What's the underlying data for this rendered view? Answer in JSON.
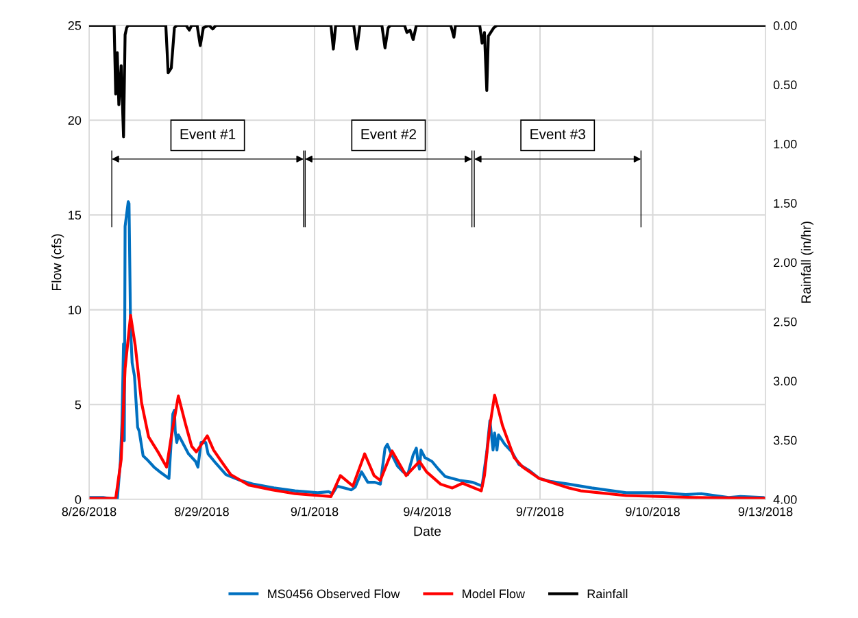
{
  "chart_data": {
    "type": "line",
    "xlabel": "Date",
    "ylabel": "Flow (cfs)",
    "y2label": "Rainfall (in/hr)",
    "xlim": [
      "2018-08-26",
      "2018-09-13"
    ],
    "xticks": [
      {
        "value": "2018-08-26",
        "label": "8/26/2018"
      },
      {
        "value": "2018-08-29",
        "label": "8/29/2018"
      },
      {
        "value": "2018-09-01",
        "label": "9/1/2018"
      },
      {
        "value": "2018-09-04",
        "label": "9/4/2018"
      },
      {
        "value": "2018-09-07",
        "label": "9/7/2018"
      },
      {
        "value": "2018-09-10",
        "label": "9/10/2018"
      },
      {
        "value": "2018-09-13",
        "label": "9/13/2018"
      }
    ],
    "ylim": [
      0,
      25
    ],
    "yticks": [
      0,
      5,
      10,
      15,
      20,
      25
    ],
    "y2lim": [
      4,
      0
    ],
    "y2ticks": [
      {
        "value": 0,
        "label": "0.00"
      },
      {
        "value": 0.5,
        "label": "0.50"
      },
      {
        "value": 1,
        "label": "1.00"
      },
      {
        "value": 1.5,
        "label": "1.50"
      },
      {
        "value": 2,
        "label": "2.00"
      },
      {
        "value": 2.5,
        "label": "2.50"
      },
      {
        "value": 3,
        "label": "3.00"
      },
      {
        "value": 3.5,
        "label": "3.50"
      },
      {
        "value": 4,
        "label": "4.00"
      }
    ],
    "grid": true,
    "legend": "bottom",
    "line_style": "solid",
    "marker": "none",
    "ref_lines": [
      {
        "axis": "x",
        "value": "2018-08-26T14:30",
        "color": "#000000"
      },
      {
        "axis": "x",
        "value": "2018-08-31T17:00",
        "color": "#000000"
      },
      {
        "axis": "x",
        "value": "2018-08-31T18:00",
        "color": "#000000"
      },
      {
        "axis": "x",
        "value": "2018-09-05T04:30",
        "color": "#000000"
      },
      {
        "axis": "x",
        "value": "2018-09-05T06:00",
        "color": "#000000"
      },
      {
        "axis": "x",
        "value": "2018-09-09T16:30",
        "color": "#000000"
      }
    ],
    "annotations": [
      "Event #1",
      "Event #2",
      "Event #3"
    ],
    "series": [
      {
        "name": "MS0456 Observed Flow",
        "color": "#0070c0",
        "x": [
          "2018-08-26T00:00",
          "2018-08-26T09:00",
          "2018-08-26T17:00",
          "2018-08-26T18:00",
          "2018-08-26T20:00",
          "2018-08-26T21:00",
          "2018-08-26T22:00",
          "2018-08-26T22:30",
          "2018-08-26T23:00",
          "2018-08-27T01:00",
          "2018-08-27T01:30",
          "2018-08-27T02:30",
          "2018-08-27T03:30",
          "2018-08-27T05:00",
          "2018-08-27T07:00",
          "2018-08-27T08:00",
          "2018-08-27T10:30",
          "2018-08-27T13:00",
          "2018-08-27T17:30",
          "2018-08-27T22:00",
          "2018-08-28T03:00",
          "2018-08-28T05:30",
          "2018-08-28T06:30",
          "2018-08-28T07:00",
          "2018-08-28T08:00",
          "2018-08-28T09:00",
          "2018-08-28T11:00",
          "2018-08-28T15:30",
          "2018-08-28T20:00",
          "2018-08-28T21:30",
          "2018-08-28T23:30",
          "2018-08-29T02:30",
          "2018-08-29T04:00",
          "2018-08-29T09:00",
          "2018-08-29T15:30",
          "2018-08-30T00:30",
          "2018-08-30T09:00",
          "2018-08-30T22:00",
          "2018-08-31T11:30",
          "2018-09-01T02:00",
          "2018-09-01T09:00",
          "2018-09-01T11:30",
          "2018-09-01T14:30",
          "2018-09-01T23:30",
          "2018-09-02T02:00",
          "2018-09-02T06:00",
          "2018-09-02T10:00",
          "2018-09-02T14:30",
          "2018-09-02T18:00",
          "2018-09-02T21:00",
          "2018-09-02T22:30",
          "2018-09-03T00:30",
          "2018-09-03T05:00",
          "2018-09-03T08:30",
          "2018-09-03T11:30",
          "2018-09-03T15:00",
          "2018-09-03T17:00",
          "2018-09-03T18:00",
          "2018-09-03T19:00",
          "2018-09-03T20:00",
          "2018-09-03T22:30",
          "2018-09-04T03:00",
          "2018-09-04T07:00",
          "2018-09-04T11:30",
          "2018-09-04T20:30",
          "2018-09-05T05:00",
          "2018-09-05T11:00",
          "2018-09-05T14:00",
          "2018-09-05T16:00",
          "2018-09-05T18:00",
          "2018-09-05T19:00",
          "2018-09-05T20:30",
          "2018-09-05T21:30",
          "2018-09-06T01:30",
          "2018-09-06T06:00",
          "2018-09-06T10:30",
          "2018-09-06T17:30",
          "2018-09-06T23:30",
          "2018-09-07T06:30",
          "2018-09-07T18:30",
          "2018-09-08T09:00",
          "2018-09-09T07:00",
          "2018-09-10T06:30",
          "2018-09-10T21:00",
          "2018-09-11T07:00",
          "2018-09-12T00:30",
          "2018-09-12T08:00",
          "2018-09-12T22:30",
          "2018-09-13T00:00"
        ],
        "values": [
          0.1,
          0.1,
          0.0,
          0.0,
          2.0,
          4.0,
          8.2,
          3.1,
          14.4,
          15.7,
          15.6,
          9.0,
          7.2,
          6.5,
          3.8,
          3.6,
          2.3,
          2.1,
          1.7,
          1.4,
          1.1,
          4.5,
          4.7,
          3.6,
          3.0,
          3.4,
          3.1,
          2.4,
          2.0,
          1.7,
          3.0,
          3.0,
          2.4,
          1.9,
          1.3,
          1.0,
          0.8,
          0.6,
          0.45,
          0.35,
          0.4,
          0.3,
          0.7,
          0.5,
          0.65,
          1.45,
          0.9,
          0.9,
          0.8,
          2.7,
          2.9,
          2.5,
          1.75,
          1.45,
          1.3,
          2.35,
          2.7,
          2.0,
          1.6,
          2.6,
          2.2,
          2.0,
          1.6,
          1.2,
          1.0,
          0.9,
          0.7,
          2.5,
          4.15,
          2.6,
          3.5,
          2.6,
          3.4,
          2.9,
          2.5,
          1.85,
          1.5,
          1.1,
          0.95,
          0.8,
          0.6,
          0.35,
          0.35,
          0.25,
          0.3,
          0.1,
          0.15,
          0.1,
          0.05
        ]
      },
      {
        "name": "Model Flow",
        "color": "#ff0000",
        "x": [
          "2018-08-26T00:00",
          "2018-08-26T17:00",
          "2018-08-26T20:30",
          "2018-08-26T23:00",
          "2018-08-27T02:30",
          "2018-08-27T05:30",
          "2018-08-27T09:30",
          "2018-08-27T14:00",
          "2018-08-27T20:00",
          "2018-08-28T01:30",
          "2018-08-28T04:30",
          "2018-08-28T09:00",
          "2018-08-28T13:30",
          "2018-08-28T17:30",
          "2018-08-28T20:30",
          "2018-08-29T03:30",
          "2018-08-29T07:30",
          "2018-08-29T12:30",
          "2018-08-29T18:30",
          "2018-08-30T06:00",
          "2018-08-30T21:00",
          "2018-08-31T11:30",
          "2018-09-01T10:30",
          "2018-09-01T16:30",
          "2018-09-02T00:30",
          "2018-09-02T08:00",
          "2018-09-02T14:00",
          "2018-09-02T18:00",
          "2018-09-03T01:30",
          "2018-09-03T10:30",
          "2018-09-03T19:00",
          "2018-09-03T23:30",
          "2018-09-04T08:30",
          "2018-09-04T16:00",
          "2018-09-04T22:30",
          "2018-09-05T10:30",
          "2018-09-05T12:30",
          "2018-09-05T16:00",
          "2018-09-05T19:00",
          "2018-09-06T00:00",
          "2018-09-06T07:30",
          "2018-09-06T13:00",
          "2018-09-06T23:30",
          "2018-09-07T18:30",
          "2018-09-08T02:00",
          "2018-09-09T07:00",
          "2018-09-11T02:30",
          "2018-09-13T00:00"
        ],
        "values": [
          0.05,
          0.05,
          2.1,
          6.9,
          9.7,
          8.1,
          5.1,
          3.3,
          2.5,
          1.7,
          3.3,
          5.45,
          4.0,
          2.8,
          2.5,
          3.35,
          2.6,
          2.0,
          1.3,
          0.75,
          0.5,
          0.3,
          0.15,
          1.25,
          0.7,
          2.4,
          1.25,
          1.0,
          2.55,
          1.25,
          2.0,
          1.45,
          0.8,
          0.6,
          0.85,
          0.45,
          1.25,
          3.9,
          5.5,
          3.9,
          2.2,
          1.7,
          1.1,
          0.6,
          0.45,
          0.2,
          0.1,
          0.05
        ]
      },
      {
        "name": "Rainfall",
        "color": "#000000",
        "axis": "y2",
        "x": [
          "2018-08-26T00:00",
          "2018-08-26T16:00",
          "2018-08-26T17:00",
          "2018-08-26T18:00",
          "2018-08-26T19:00",
          "2018-08-26T20:30",
          "2018-08-26T22:00",
          "2018-08-26T23:00",
          "2018-08-27T00:00",
          "2018-08-27T01:00",
          "2018-08-28T01:00",
          "2018-08-28T02:30",
          "2018-08-28T04:30",
          "2018-08-28T06:30",
          "2018-08-28T08:00",
          "2018-08-28T14:00",
          "2018-08-28T16:00",
          "2018-08-28T17:30",
          "2018-08-28T21:00",
          "2018-08-28T23:00",
          "2018-08-29T01:00",
          "2018-08-29T04:30",
          "2018-08-29T07:00",
          "2018-08-29T09:00",
          "2018-09-01T10:30",
          "2018-09-01T12:00",
          "2018-09-01T13:30",
          "2018-09-02T01:00",
          "2018-09-02T03:00",
          "2018-09-02T05:00",
          "2018-09-02T19:00",
          "2018-09-02T21:00",
          "2018-09-02T23:00",
          "2018-09-03T00:30",
          "2018-09-03T09:30",
          "2018-09-03T11:00",
          "2018-09-03T13:00",
          "2018-09-03T15:00",
          "2018-09-03T17:00",
          "2018-09-04T15:00",
          "2018-09-04T17:00",
          "2018-09-04T18:00",
          "2018-09-05T09:30",
          "2018-09-05T11:00",
          "2018-09-05T12:30",
          "2018-09-05T14:00",
          "2018-09-05T15:00",
          "2018-09-05T18:30",
          "2018-09-05T20:30",
          "2018-09-13T00:00"
        ],
        "values": [
          0,
          0,
          0.58,
          0.23,
          0.67,
          0.34,
          0.94,
          0.08,
          0.02,
          0,
          0,
          0.4,
          0.36,
          0.02,
          0,
          0,
          0.04,
          0,
          0,
          0.17,
          0.02,
          0,
          0.03,
          0,
          0,
          0.2,
          0,
          0,
          0.2,
          0,
          0,
          0.19,
          0.02,
          0,
          0,
          0.06,
          0.04,
          0.12,
          0,
          0,
          0.1,
          0,
          0,
          0.15,
          0.06,
          0.55,
          0.09,
          0.02,
          0,
          0
        ]
      }
    ]
  }
}
